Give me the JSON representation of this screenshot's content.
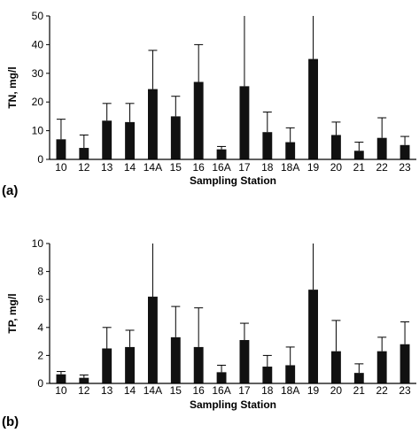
{
  "chart_data": [
    {
      "type": "bar",
      "panel_label": "(a)",
      "xlabel": "Sampling Station",
      "ylabel": "TN, mg/l",
      "ylim": [
        0,
        50
      ],
      "yticks": [
        0,
        10,
        20,
        30,
        40,
        50
      ],
      "grid": false,
      "error_bars": true,
      "categories": [
        "10",
        "12",
        "13",
        "14",
        "14A",
        "15",
        "16",
        "16A",
        "17",
        "18",
        "18A",
        "19",
        "20",
        "21",
        "22",
        "23"
      ],
      "values": [
        7,
        4,
        13.5,
        13,
        24.5,
        15,
        27,
        3.5,
        25.5,
        9.5,
        6,
        35,
        8.5,
        3,
        7.5,
        5
      ],
      "error_upper": [
        14,
        8.5,
        19.5,
        19.5,
        38,
        22,
        40,
        4.5,
        51,
        16.5,
        11,
        51,
        13,
        6,
        14.5,
        8
      ]
    },
    {
      "type": "bar",
      "panel_label": "(b)",
      "xlabel": "Sampling Station",
      "ylabel": "TP, mg/l",
      "ylim": [
        0,
        10
      ],
      "yticks": [
        0,
        2,
        4,
        6,
        8,
        10
      ],
      "grid": false,
      "error_bars": true,
      "categories": [
        "10",
        "12",
        "13",
        "14",
        "14A",
        "15",
        "16",
        "16A",
        "17",
        "18",
        "18A",
        "19",
        "20",
        "21",
        "22",
        "23"
      ],
      "values": [
        0.65,
        0.4,
        2.5,
        2.6,
        6.2,
        3.3,
        2.6,
        0.8,
        3.1,
        1.2,
        1.3,
        6.7,
        2.3,
        0.75,
        2.3,
        2.8
      ],
      "error_upper": [
        0.85,
        0.6,
        4.0,
        3.8,
        10,
        5.5,
        5.4,
        1.3,
        4.3,
        2.0,
        2.6,
        10,
        4.5,
        1.4,
        3.3,
        4.4
      ]
    }
  ]
}
